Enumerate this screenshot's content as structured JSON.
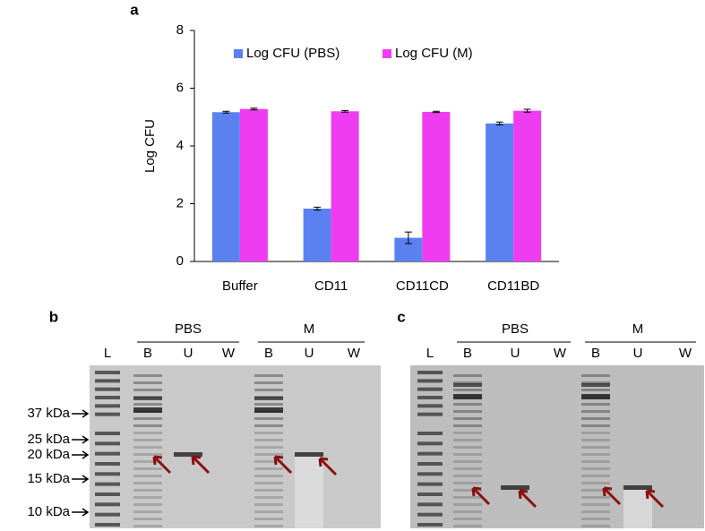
{
  "chart_data": {
    "type": "bar",
    "panel_label": "a",
    "y_label": "Log CFU",
    "categories": [
      "Buffer",
      "CD11",
      "CD11CD",
      "CD11BD"
    ],
    "series": [
      {
        "name": "Log CFU (PBS)",
        "color": "#5b80f0",
        "values": [
          5.17,
          1.83,
          0.82,
          4.78
        ],
        "errors": [
          0.03,
          0.05,
          0.2,
          0.05
        ]
      },
      {
        "name": "Log CFU (M)",
        "color": "#f03cf0",
        "values": [
          5.28,
          5.2,
          5.18,
          5.22
        ],
        "errors": [
          0.03,
          0.03,
          0.02,
          0.05
        ]
      }
    ],
    "ylim": [
      0,
      8
    ],
    "yticks": [
      0,
      2,
      4,
      6,
      8
    ],
    "grid": false,
    "legend": "top"
  },
  "gels": [
    {
      "panel_label": "b",
      "ladder_label": "L",
      "groups": [
        {
          "name": "PBS",
          "lanes": [
            "B",
            "U",
            "W"
          ]
        },
        {
          "name": "M",
          "lanes": [
            "B",
            "U",
            "W"
          ]
        }
      ],
      "markers": [
        "37 kDa",
        "25 kDa",
        "20 kDa",
        "15 kDa",
        "10 kDa"
      ]
    },
    {
      "panel_label": "c",
      "ladder_label": "L",
      "groups": [
        {
          "name": "PBS",
          "lanes": [
            "B",
            "U",
            "W"
          ]
        },
        {
          "name": "M",
          "lanes": [
            "B",
            "U",
            "W"
          ]
        }
      ],
      "markers": []
    }
  ]
}
